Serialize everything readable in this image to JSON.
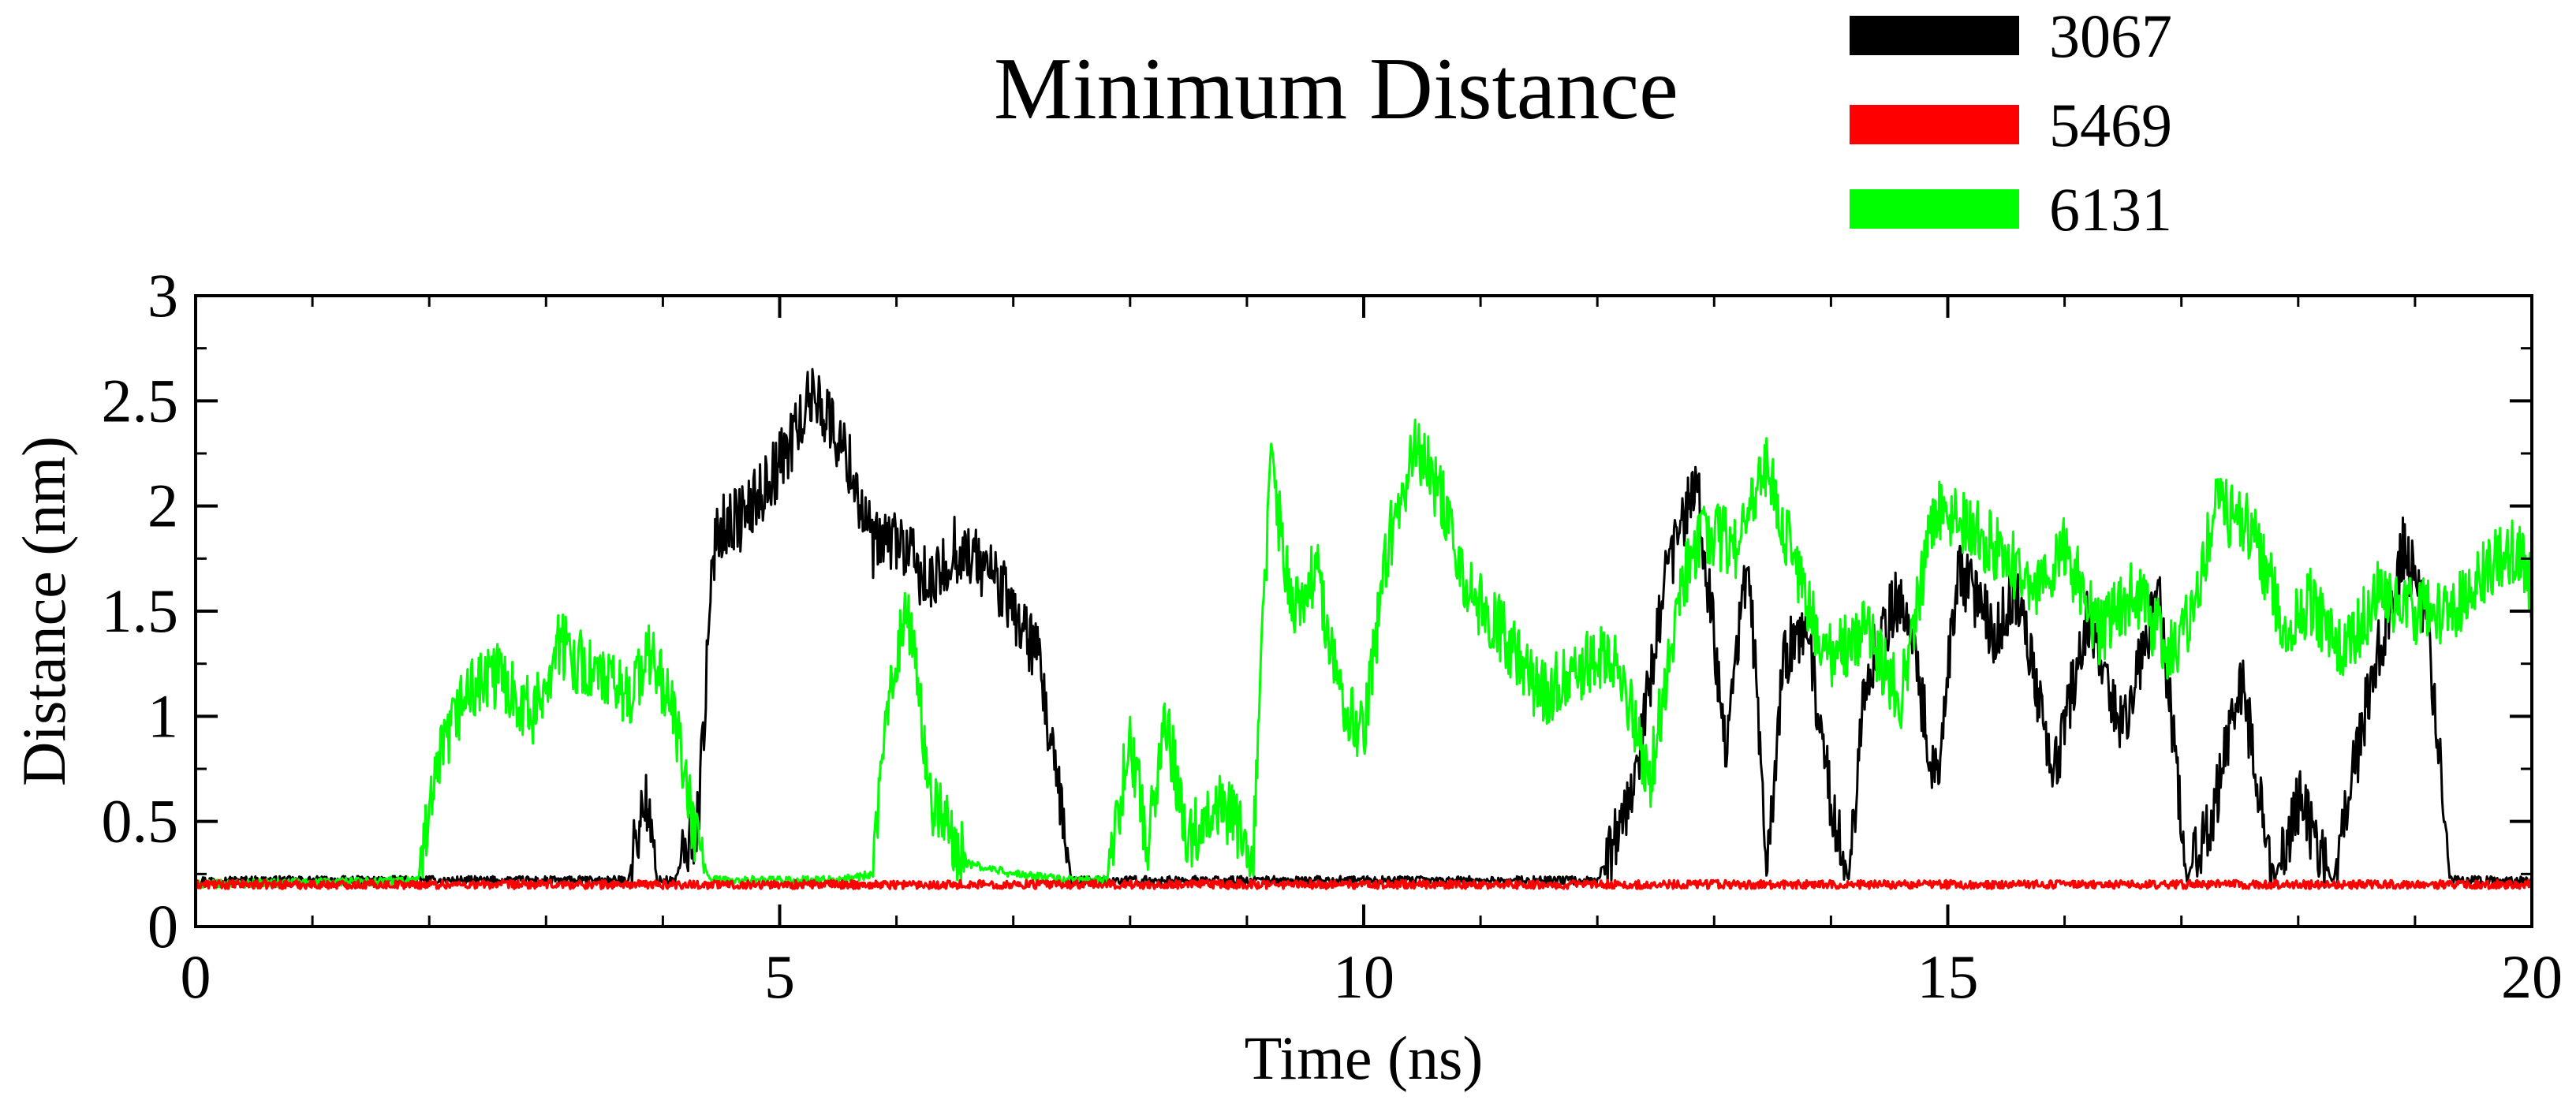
{
  "chart_data": {
    "type": "line",
    "title": "Minimum Distance",
    "xlabel": "Time (ns)",
    "ylabel": "Distance (nm)",
    "xlim": [
      0,
      20
    ],
    "ylim": [
      0,
      3
    ],
    "xticks": [
      0,
      5,
      10,
      15,
      20
    ],
    "yticks": [
      0,
      0.5,
      1,
      1.5,
      2,
      2.5,
      3
    ],
    "xtick_labels": [
      "0",
      "5",
      "10",
      "15",
      "20"
    ],
    "ytick_labels": [
      "0",
      "0.5",
      "1",
      "1.5",
      "2",
      "2.5",
      "3"
    ],
    "grid": false,
    "legend_position": "top-right, outside plot",
    "series": [
      {
        "name": "3067",
        "color": "#000000",
        "x": [
          0,
          3.7,
          3.85,
          3.95,
          4.1,
          4.3,
          4.45,
          4.7,
          5.0,
          5.3,
          5.6,
          5.8,
          6.0,
          6.3,
          6.5,
          6.8,
          7.0,
          7.2,
          7.35,
          7.5,
          12.0,
          12.3,
          12.6,
          12.85,
          13.1,
          13.3,
          13.45,
          13.6,
          13.8,
          14.0,
          14.15,
          14.3,
          14.6,
          14.9,
          15.1,
          15.4,
          15.6,
          15.9,
          16.2,
          16.5,
          16.8,
          17.05,
          17.3,
          17.5,
          17.8,
          18.0,
          18.3,
          18.6,
          18.9,
          19.1,
          19.3,
          19.5,
          20
        ],
        "values": [
          0.22,
          0.22,
          0.62,
          0.22,
          0.22,
          0.5,
          1.9,
          1.95,
          2.2,
          2.55,
          2.2,
          1.8,
          1.85,
          1.6,
          1.8,
          1.7,
          1.5,
          1.3,
          0.75,
          0.22,
          0.22,
          0.6,
          1.7,
          2.1,
          0.9,
          1.75,
          0.22,
          1.3,
          1.4,
          0.6,
          0.22,
          1.2,
          1.6,
          0.7,
          1.7,
          1.4,
          1.6,
          0.7,
          1.5,
          0.9,
          1.6,
          0.22,
          0.6,
          1.2,
          0.22,
          0.6,
          0.22,
          1.1,
          1.8,
          1.5,
          0.22,
          0.22,
          0.22
        ]
      },
      {
        "name": "5469",
        "color": "#ff0000",
        "x": [
          0,
          5,
          10,
          15,
          20
        ],
        "values": [
          0.2,
          0.2,
          0.2,
          0.2,
          0.2
        ]
      },
      {
        "name": "6131",
        "color": "#00ff00",
        "x": [
          0,
          1.9,
          2.1,
          2.3,
          2.6,
          2.9,
          3.1,
          3.4,
          3.7,
          3.9,
          4.1,
          4.25,
          4.4,
          5.5,
          5.8,
          5.95,
          6.1,
          6.3,
          6.6,
          7.0,
          7.5,
          7.8,
          8.0,
          8.15,
          8.3,
          8.5,
          8.7,
          8.9,
          9.05,
          9.2,
          9.4,
          9.6,
          9.8,
          10.0,
          10.2,
          10.45,
          10.7,
          10.9,
          11.2,
          11.5,
          11.8,
          12.0,
          12.2,
          12.45,
          12.7,
          12.9,
          13.2,
          13.45,
          13.6,
          13.8,
          14.0,
          14.3,
          14.6,
          14.9,
          15.2,
          15.5,
          15.8,
          16.0,
          16.3,
          16.6,
          16.9,
          17.1,
          17.3,
          17.6,
          17.9,
          18.1,
          18.4,
          18.7,
          19.0,
          19.3,
          19.6,
          19.9,
          20
        ],
        "values": [
          0.2,
          0.22,
          0.8,
          1.1,
          1.2,
          1.0,
          1.35,
          1.2,
          1.1,
          1.3,
          1.0,
          0.5,
          0.22,
          0.22,
          0.25,
          1.2,
          1.5,
          0.6,
          0.3,
          0.25,
          0.22,
          0.22,
          0.9,
          0.4,
          1.0,
          0.4,
          0.6,
          0.5,
          0.3,
          2.2,
          1.5,
          1.7,
          1.1,
          0.9,
          1.8,
          2.3,
          2.0,
          1.6,
          1.4,
          1.1,
          1.2,
          1.3,
          1.2,
          0.7,
          1.6,
          1.9,
          1.8,
          2.2,
          1.9,
          1.5,
          1.3,
          1.4,
          1.1,
          2.0,
          1.9,
          1.75,
          1.6,
          1.8,
          1.4,
          1.6,
          1.3,
          1.5,
          2.0,
          1.9,
          1.4,
          1.55,
          1.3,
          1.6,
          1.5,
          1.5,
          1.7,
          1.8,
          1.6
        ]
      }
    ]
  }
}
